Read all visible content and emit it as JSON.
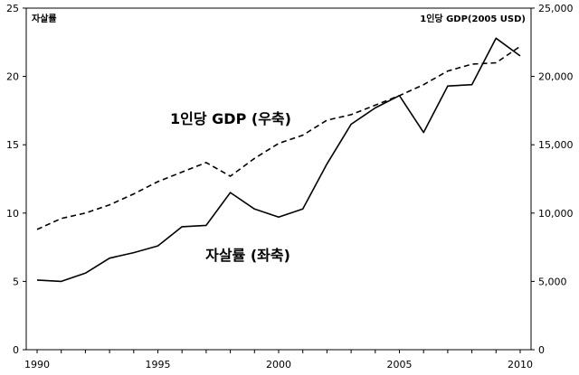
{
  "chart_data": {
    "type": "line",
    "x": [
      1990,
      1991,
      1992,
      1993,
      1994,
      1995,
      1996,
      1997,
      1998,
      1999,
      2000,
      2001,
      2002,
      2003,
      2004,
      2005,
      2006,
      2007,
      2008,
      2009,
      2010
    ],
    "series": [
      {
        "name": "자살률 (좌축)",
        "axis": "left",
        "line_style": "solid",
        "values": [
          5.1,
          5.0,
          5.6,
          6.7,
          7.1,
          7.6,
          9.0,
          9.1,
          11.5,
          10.3,
          9.7,
          10.3,
          13.6,
          16.5,
          17.7,
          18.6,
          15.9,
          19.3,
          19.4,
          22.8,
          21.5
        ]
      },
      {
        "name": "1인당 GDP (우축)",
        "axis": "right",
        "line_style": "dashed",
        "values": [
          8800,
          9600,
          10000,
          10600,
          11400,
          12300,
          13000,
          13700,
          12700,
          14000,
          15100,
          15700,
          16800,
          17200,
          17900,
          18600,
          19400,
          20400,
          20900,
          21000,
          22200
        ]
      }
    ],
    "left_axis": {
      "label": "자살률",
      "range": [
        0,
        25
      ],
      "ticks": [
        "0",
        "5",
        "10",
        "15",
        "20",
        "25"
      ]
    },
    "right_axis": {
      "label": "1인당 GDP(2005 USD)",
      "range": [
        0,
        25000
      ],
      "ticks": [
        "0",
        "5,000",
        "10,000",
        "15,000",
        "20,000",
        "25,000"
      ]
    },
    "x_axis": {
      "range": [
        1990,
        2010
      ],
      "ticks": [
        "1990",
        "1995",
        "2000",
        "2005",
        "2010"
      ]
    },
    "annotations": {
      "gdp": "1인당 GDP (우축)",
      "suicide": "자살률 (좌축)"
    },
    "grid": false,
    "legend": "none"
  }
}
